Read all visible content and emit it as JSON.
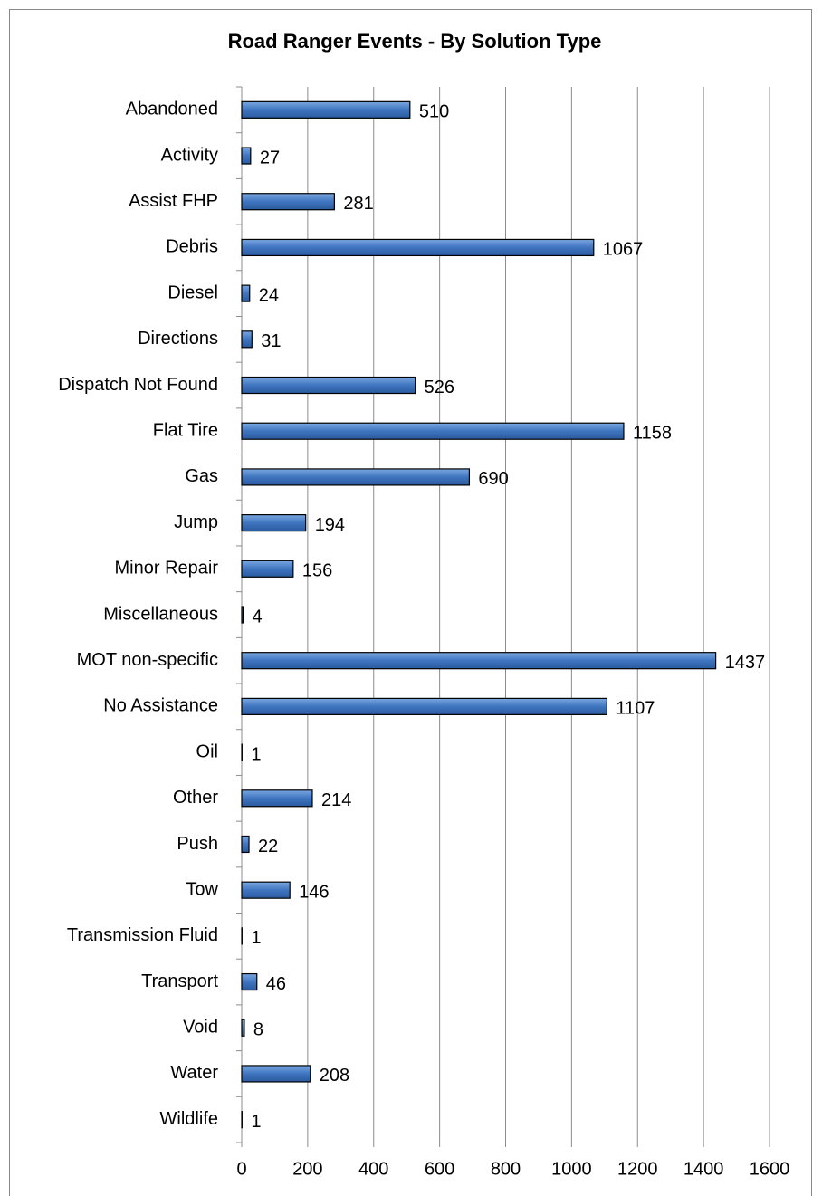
{
  "chart_data": {
    "type": "bar",
    "orientation": "horizontal",
    "title": "Road Ranger Events - By Solution Type",
    "categories": [
      "Abandoned",
      "Activity",
      "Assist FHP",
      "Debris",
      "Diesel",
      "Directions",
      "Dispatch Not Found",
      "Flat Tire",
      "Gas",
      "Jump",
      "Minor Repair",
      "Miscellaneous",
      "MOT non-specific",
      "No Assistance",
      "Oil",
      "Other",
      "Push",
      "Tow",
      "Transmission Fluid",
      "Transport",
      "Void",
      "Water",
      "Wildlife"
    ],
    "values": [
      510,
      27,
      281,
      1067,
      24,
      31,
      526,
      1158,
      690,
      194,
      156,
      4,
      1437,
      1107,
      1,
      214,
      22,
      146,
      1,
      46,
      8,
      208,
      1
    ],
    "color": "#4a7ebb",
    "xlim": [
      0,
      1600
    ],
    "xticks": [
      0,
      200,
      400,
      600,
      800,
      1000,
      1200,
      1400,
      1600
    ],
    "grid": true
  }
}
